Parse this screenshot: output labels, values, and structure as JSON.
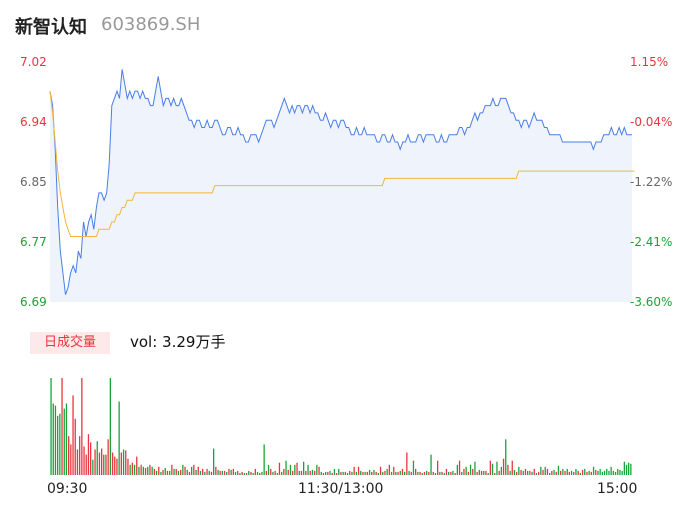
{
  "header": {
    "name": "新智认知",
    "code": "603869.SH"
  },
  "colors": {
    "price_line": "#4a7ee6",
    "avg_line": "#f4b63a",
    "up": "#e8353f",
    "down": "#1aa33a",
    "area": "#eef3fc"
  },
  "volume": {
    "tag": "日成交量",
    "label": "vol: 3.29万手"
  },
  "chart_data": [
    {
      "type": "line",
      "y_axis_left": [
        "7.02",
        "6.94",
        "6.85",
        "6.77",
        "6.69"
      ],
      "y_axis_right": [
        "1.15%",
        "-0.04%",
        "-1.22%",
        "-2.41%",
        "-3.60%"
      ],
      "ylim": [
        6.69,
        7.02
      ],
      "x_ticks": [
        "09:30",
        "11:30/13:00",
        "15:00"
      ],
      "series": [
        {
          "values": [
            6.98,
            6.96,
            6.9,
            6.82,
            6.76,
            6.73,
            6.7,
            6.71,
            6.73,
            6.74,
            6.73,
            6.76,
            6.75,
            6.8,
            6.78,
            6.8,
            6.81,
            6.79,
            6.82,
            6.84,
            6.84,
            6.83,
            6.84,
            6.88,
            6.96,
            6.97,
            6.98,
            6.97,
            7.01,
            6.99,
            6.97,
            6.98,
            6.97,
            6.98,
            6.98,
            6.97,
            6.98,
            6.97,
            6.97,
            6.96,
            6.96,
            6.98,
            7.0,
            6.98,
            6.96,
            6.97,
            6.97,
            6.96,
            6.97,
            6.96,
            6.96,
            6.97,
            6.96,
            6.95,
            6.94,
            6.94,
            6.93,
            6.94,
            6.94,
            6.93,
            6.93,
            6.94,
            6.93,
            6.93,
            6.94,
            6.94,
            6.93,
            6.92,
            6.92,
            6.93,
            6.93,
            6.92,
            6.92,
            6.93,
            6.92,
            6.92,
            6.91,
            6.91,
            6.92,
            6.92,
            6.92,
            6.91,
            6.92,
            6.93,
            6.94,
            6.94,
            6.94,
            6.93,
            6.94,
            6.95,
            6.96,
            6.97,
            6.96,
            6.95,
            6.96,
            6.95,
            6.96,
            6.96,
            6.95,
            6.96,
            6.96,
            6.95,
            6.96,
            6.95,
            6.95,
            6.94,
            6.94,
            6.95,
            6.94,
            6.93,
            6.94,
            6.94,
            6.93,
            6.94,
            6.94,
            6.93,
            6.93,
            6.92,
            6.92,
            6.93,
            6.92,
            6.92,
            6.93,
            6.92,
            6.92,
            6.92,
            6.92,
            6.91,
            6.91,
            6.92,
            6.92,
            6.91,
            6.91,
            6.92,
            6.91,
            6.91,
            6.9,
            6.91,
            6.91,
            6.92,
            6.91,
            6.91,
            6.91,
            6.92,
            6.92,
            6.91,
            6.92,
            6.92,
            6.92,
            6.92,
            6.91,
            6.91,
            6.92,
            6.91,
            6.91,
            6.92,
            6.92,
            6.92,
            6.92,
            6.93,
            6.93,
            6.92,
            6.93,
            6.93,
            6.94,
            6.95,
            6.94,
            6.95,
            6.95,
            6.96,
            6.96,
            6.96,
            6.97,
            6.96,
            6.96,
            6.97,
            6.97,
            6.97,
            6.96,
            6.95,
            6.95,
            6.94,
            6.94,
            6.93,
            6.94,
            6.94,
            6.93,
            6.94,
            6.95,
            6.94,
            6.94,
            6.94,
            6.93,
            6.93,
            6.92,
            6.92,
            6.92,
            6.92,
            6.92,
            6.91,
            6.91,
            6.91,
            6.91,
            6.91,
            6.91,
            6.91,
            6.91,
            6.91,
            6.91,
            6.91,
            6.91,
            6.9,
            6.91,
            6.91,
            6.91,
            6.92,
            6.92,
            6.92,
            6.93,
            6.92,
            6.92,
            6.93,
            6.92,
            6.93,
            6.92,
            6.92,
            6.92
          ]
        },
        {
          "values": [
            6.98,
            6.95,
            6.91,
            6.87,
            6.84,
            6.82,
            6.8,
            6.79,
            6.78,
            6.78,
            6.78,
            6.78,
            6.78,
            6.78,
            6.78,
            6.78,
            6.78,
            6.78,
            6.78,
            6.79,
            6.79,
            6.79,
            6.79,
            6.79,
            6.8,
            6.8,
            6.81,
            6.81,
            6.82,
            6.82,
            6.83,
            6.83,
            6.83,
            6.84,
            6.84,
            6.84,
            6.84,
            6.84,
            6.84,
            6.84,
            6.84,
            6.84,
            6.84,
            6.84,
            6.84,
            6.84,
            6.84,
            6.84,
            6.84,
            6.84,
            6.84,
            6.84,
            6.84,
            6.84,
            6.84,
            6.84,
            6.84,
            6.84,
            6.84,
            6.84,
            6.84,
            6.84,
            6.84,
            6.84,
            6.85,
            6.85,
            6.85,
            6.85,
            6.85,
            6.85,
            6.85,
            6.85,
            6.85,
            6.85,
            6.85,
            6.85,
            6.85,
            6.85,
            6.85,
            6.85,
            6.85,
            6.85,
            6.85,
            6.85,
            6.85,
            6.85,
            6.85,
            6.85,
            6.85,
            6.85,
            6.85,
            6.85,
            6.85,
            6.85,
            6.85,
            6.85,
            6.85,
            6.85,
            6.85,
            6.85,
            6.85,
            6.85,
            6.85,
            6.85,
            6.85,
            6.85,
            6.85,
            6.85,
            6.85,
            6.85,
            6.85,
            6.85,
            6.85,
            6.85,
            6.85,
            6.85,
            6.85,
            6.85,
            6.85,
            6.85,
            6.85,
            6.85,
            6.85,
            6.85,
            6.85,
            6.85,
            6.85,
            6.85,
            6.85,
            6.85,
            6.86,
            6.86,
            6.86,
            6.86,
            6.86,
            6.86,
            6.86,
            6.86,
            6.86,
            6.86,
            6.86,
            6.86,
            6.86,
            6.86,
            6.86,
            6.86,
            6.86,
            6.86,
            6.86,
            6.86,
            6.86,
            6.86,
            6.86,
            6.86,
            6.86,
            6.86,
            6.86,
            6.86,
            6.86,
            6.86,
            6.86,
            6.86,
            6.86,
            6.86,
            6.86,
            6.86,
            6.86,
            6.86,
            6.86,
            6.86,
            6.86,
            6.86,
            6.86,
            6.86,
            6.86,
            6.86,
            6.86,
            6.86,
            6.86,
            6.86,
            6.86,
            6.86,
            6.87,
            6.87,
            6.87,
            6.87,
            6.87,
            6.87,
            6.87,
            6.87,
            6.87,
            6.87,
            6.87,
            6.87,
            6.87,
            6.87,
            6.87,
            6.87,
            6.87,
            6.87,
            6.87,
            6.87,
            6.87,
            6.87,
            6.87,
            6.87,
            6.87,
            6.87,
            6.87,
            6.87,
            6.87,
            6.87,
            6.87,
            6.87,
            6.87,
            6.87,
            6.87,
            6.87,
            6.87,
            6.87,
            6.87,
            6.87,
            6.87,
            6.87,
            6.87,
            6.87,
            6.87,
            6.87
          ]
        }
      ]
    },
    {
      "type": "bar",
      "volumes": [
        95,
        70,
        68,
        58,
        60,
        95,
        65,
        70,
        38,
        30,
        78,
        55,
        25,
        38,
        95,
        28,
        20,
        40,
        32,
        15,
        25,
        33,
        22,
        26,
        20,
        20,
        35,
        95,
        22,
        18,
        16,
        72,
        22,
        25,
        24,
        16,
        10,
        12,
        10,
        18,
        8,
        10,
        8,
        7,
        8,
        10,
        8,
        6,
        4,
        8,
        3,
        5,
        7,
        4,
        4,
        10,
        6,
        6,
        4,
        5,
        10,
        8,
        5,
        3,
        8,
        10,
        5,
        8,
        4,
        6,
        3,
        6,
        4,
        3,
        26,
        8,
        5,
        4,
        4,
        4,
        3,
        6,
        5,
        6,
        3,
        4,
        2,
        3,
        2,
        2,
        4,
        3,
        2,
        6,
        3,
        2,
        3,
        30,
        4,
        10,
        6,
        3,
        4,
        2,
        12,
        3,
        6,
        14,
        5,
        10,
        4,
        10,
        12,
        4,
        4,
        13,
        4,
        10,
        4,
        5,
        4,
        10,
        8,
        3,
        2,
        3,
        3,
        4,
        2,
        6,
        2,
        6,
        3,
        3,
        3,
        2,
        4,
        3,
        8,
        3,
        8,
        4,
        3,
        3,
        3,
        5,
        3,
        5,
        3,
        2,
        8,
        3,
        4,
        6,
        10,
        3,
        8,
        3,
        3,
        4,
        6,
        3,
        22,
        4,
        3,
        14,
        6,
        3,
        3,
        2,
        3,
        4,
        3,
        20,
        3,
        2,
        14,
        3,
        3,
        2,
        6,
        3,
        3,
        4,
        2,
        10,
        14,
        3,
        6,
        8,
        3,
        10,
        6,
        13,
        3,
        5,
        4,
        4,
        4,
        2,
        14,
        11,
        2,
        13,
        4,
        8,
        16,
        35,
        10,
        4,
        14,
        5,
        3,
        8,
        5,
        4,
        6,
        4,
        4,
        3,
        6,
        2,
        3,
        8,
        5,
        8,
        6,
        2,
        4,
        5,
        3,
        9,
        4,
        6,
        4,
        6,
        3,
        4,
        3,
        6,
        4,
        2,
        5,
        6,
        3,
        4,
        3,
        8,
        5,
        4,
        6,
        3,
        4,
        6,
        4,
        8,
        4,
        3,
        6,
        5,
        4,
        13,
        10,
        12,
        11
      ],
      "directions": [
        "d",
        "d",
        "d",
        "d",
        "d",
        "u",
        "d",
        "d",
        "u",
        "u",
        "u",
        "u",
        "u",
        "u",
        "u",
        "u",
        "u",
        "u",
        "u",
        "d",
        "u",
        "d",
        "u",
        "u",
        "d",
        "u",
        "u",
        "d",
        "u",
        "u",
        "u",
        "d",
        "u",
        "d",
        "u",
        "u",
        "d",
        "u",
        "d",
        "u",
        "d",
        "u",
        "d",
        "u",
        "d",
        "u",
        "d",
        "u",
        "d",
        "u",
        "d",
        "u",
        "d",
        "u",
        "d",
        "u",
        "d",
        "u",
        "d",
        "u",
        "d",
        "u",
        "d",
        "u",
        "d",
        "u",
        "d",
        "u",
        "d",
        "u",
        "d",
        "u",
        "d",
        "u",
        "d",
        "u",
        "d",
        "u",
        "d",
        "u",
        "d",
        "u",
        "d",
        "u",
        "d",
        "u",
        "d",
        "u",
        "d",
        "u",
        "d",
        "u",
        "d",
        "u",
        "d",
        "u",
        "d",
        "d",
        "u",
        "d",
        "u",
        "d",
        "u",
        "d",
        "u",
        "d",
        "u",
        "d",
        "u",
        "d",
        "u",
        "d",
        "u",
        "d",
        "u",
        "d",
        "u",
        "d",
        "u",
        "d",
        "u",
        "d",
        "u",
        "d",
        "u",
        "d",
        "u",
        "d",
        "u",
        "d",
        "u",
        "d",
        "u",
        "d",
        "u",
        "d",
        "u",
        "d",
        "u",
        "d",
        "u",
        "d",
        "u",
        "d",
        "u",
        "d",
        "u",
        "d",
        "u",
        "d",
        "u",
        "d",
        "u",
        "d",
        "u",
        "d",
        "u",
        "d",
        "u",
        "d",
        "u",
        "d",
        "u",
        "d",
        "u",
        "d",
        "u",
        "d",
        "u",
        "d",
        "u",
        "d",
        "u",
        "d",
        "u",
        "d",
        "u",
        "d",
        "u",
        "d",
        "u",
        "d",
        "u",
        "d",
        "u",
        "d",
        "u",
        "d",
        "u",
        "d",
        "u",
        "d",
        "u",
        "d",
        "u",
        "d",
        "u",
        "d",
        "u",
        "d",
        "u",
        "d",
        "u",
        "d",
        "u",
        "d",
        "u",
        "d",
        "u",
        "d",
        "u",
        "d",
        "u",
        "d",
        "u",
        "d",
        "u",
        "d",
        "u",
        "d",
        "u",
        "d",
        "u",
        "d",
        "u",
        "d",
        "u",
        "d",
        "u",
        "d",
        "u",
        "d",
        "u",
        "d",
        "u",
        "d",
        "u",
        "d",
        "u",
        "d",
        "u",
        "d",
        "u",
        "d",
        "u",
        "d",
        "u",
        "d",
        "u"
      ]
    }
  ]
}
